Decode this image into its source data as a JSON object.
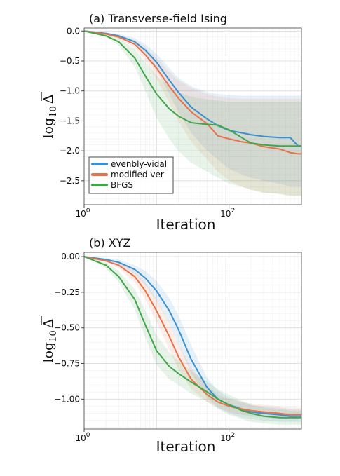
{
  "chart_data": [
    {
      "type": "line",
      "title": "(a) Transverse-field Ising",
      "xlabel": "Iteration",
      "ylabel": "log10 Δ",
      "xscale": "log",
      "xlim": [
        1,
        1000
      ],
      "ylim": [
        -2.9,
        0.05
      ],
      "xticks": [
        {
          "value": 1,
          "base": "10",
          "exp": "0"
        },
        {
          "value": 100,
          "base": "10",
          "exp": "2"
        }
      ],
      "yticks": [
        {
          "value": 0,
          "label": "0.0"
        },
        {
          "value": -0.5,
          "label": "−0.5"
        },
        {
          "value": -1.0,
          "label": "−1.0"
        },
        {
          "value": -1.5,
          "label": "−1.5"
        },
        {
          "value": -2.0,
          "label": "−2.0"
        },
        {
          "value": -2.5,
          "label": "−2.5"
        }
      ],
      "grid": true,
      "legend": "lower-left",
      "series": [
        {
          "name": "evenbly-vidal",
          "color": "#3a8fd0",
          "x": [
            1,
            2,
            3,
            5,
            7,
            10,
            15,
            20,
            30,
            50,
            70,
            100,
            150,
            200,
            300,
            500,
            700,
            900,
            1000
          ],
          "y": [
            0,
            -0.04,
            -0.08,
            -0.18,
            -0.32,
            -0.52,
            -0.82,
            -1.02,
            -1.27,
            -1.47,
            -1.58,
            -1.66,
            -1.7,
            -1.73,
            -1.76,
            -1.78,
            -1.78,
            -1.92,
            -1.92
          ],
          "band_low": [
            0,
            -0.05,
            -0.1,
            -0.22,
            -0.4,
            -0.65,
            -1.05,
            -1.35,
            -1.7,
            -2.0,
            -2.15,
            -2.3,
            -2.4,
            -2.45,
            -2.5,
            -2.55,
            -2.6,
            -2.6,
            -2.6
          ],
          "band_high": [
            0,
            -0.02,
            -0.05,
            -0.12,
            -0.22,
            -0.38,
            -0.62,
            -0.78,
            -0.92,
            -1.02,
            -1.05,
            -1.07,
            -1.08,
            -1.08,
            -1.08,
            -1.08,
            -1.08,
            -1.08,
            -1.08
          ]
        },
        {
          "name": "modified ver",
          "color": "#e8714a",
          "x": [
            1,
            2,
            3,
            5,
            7,
            10,
            15,
            20,
            30,
            50,
            70,
            100,
            150,
            200,
            300,
            500,
            700,
            900,
            1000
          ],
          "y": [
            0,
            -0.05,
            -0.1,
            -0.22,
            -0.4,
            -0.62,
            -0.92,
            -1.12,
            -1.35,
            -1.55,
            -1.75,
            -1.8,
            -1.85,
            -1.87,
            -1.93,
            -1.97,
            -2.03,
            -2.05,
            -2.05
          ],
          "band_low": [
            0,
            -0.06,
            -0.13,
            -0.28,
            -0.5,
            -0.8,
            -1.2,
            -1.5,
            -1.85,
            -2.15,
            -2.35,
            -2.5,
            -2.6,
            -2.65,
            -2.7,
            -2.72,
            -2.75,
            -2.75,
            -2.75
          ],
          "band_high": [
            0,
            -0.03,
            -0.07,
            -0.15,
            -0.28,
            -0.45,
            -0.68,
            -0.82,
            -0.95,
            -1.05,
            -1.1,
            -1.12,
            -1.13,
            -1.13,
            -1.13,
            -1.13,
            -1.13,
            -1.13,
            -1.13
          ]
        },
        {
          "name": "BFGS",
          "color": "#3fa64a",
          "x": [
            1,
            2,
            3,
            5,
            7,
            10,
            15,
            20,
            30,
            50,
            70,
            100,
            150,
            200,
            300,
            500,
            700,
            900,
            1000
          ],
          "y": [
            0,
            -0.08,
            -0.18,
            -0.45,
            -0.75,
            -1.05,
            -1.3,
            -1.42,
            -1.53,
            -1.56,
            -1.57,
            -1.65,
            -1.78,
            -1.87,
            -1.9,
            -1.92,
            -1.92,
            -1.92,
            -1.92
          ],
          "band_low": [
            0,
            -0.1,
            -0.24,
            -0.6,
            -1.0,
            -1.45,
            -1.8,
            -2.0,
            -2.2,
            -2.35,
            -2.45,
            -2.55,
            -2.6,
            -2.65,
            -2.7,
            -2.72,
            -2.75,
            -2.75,
            -2.75
          ],
          "band_high": [
            0,
            -0.05,
            -0.12,
            -0.3,
            -0.52,
            -0.75,
            -0.92,
            -1.02,
            -1.1,
            -1.14,
            -1.16,
            -1.18,
            -1.18,
            -1.18,
            -1.18,
            -1.18,
            -1.18,
            -1.18,
            -1.18
          ]
        }
      ]
    },
    {
      "type": "line",
      "title": "(b) XYZ",
      "xlabel": "Iteration",
      "ylabel": "log10 Δ",
      "xscale": "log",
      "xlim": [
        1,
        1000
      ],
      "ylim": [
        -1.21,
        0.03
      ],
      "xticks": [
        {
          "value": 1,
          "base": "10",
          "exp": "0"
        },
        {
          "value": 100,
          "base": "10",
          "exp": "2"
        }
      ],
      "yticks": [
        {
          "value": 0,
          "label": "0.00"
        },
        {
          "value": -0.25,
          "label": "−0.25"
        },
        {
          "value": -0.5,
          "label": "−0.50"
        },
        {
          "value": -0.75,
          "label": "−0.75"
        },
        {
          "value": -1.0,
          "label": "−1.00"
        }
      ],
      "grid": true,
      "legend": "none",
      "series": [
        {
          "name": "evenbly-vidal",
          "color": "#3a8fd0",
          "x": [
            1,
            2,
            3,
            5,
            7,
            10,
            15,
            20,
            30,
            50,
            70,
            100,
            150,
            200,
            300,
            500,
            700,
            1000
          ],
          "y": [
            0,
            -0.02,
            -0.04,
            -0.09,
            -0.15,
            -0.24,
            -0.38,
            -0.51,
            -0.72,
            -0.92,
            -1.0,
            -1.04,
            -1.07,
            -1.09,
            -1.1,
            -1.11,
            -1.12,
            -1.12
          ],
          "band_low": [
            0,
            -0.03,
            -0.06,
            -0.12,
            -0.2,
            -0.31,
            -0.47,
            -0.61,
            -0.82,
            -0.99,
            -1.06,
            -1.1,
            -1.13,
            -1.14,
            -1.15,
            -1.16,
            -1.16,
            -1.16
          ],
          "band_high": [
            0,
            -0.01,
            -0.02,
            -0.06,
            -0.1,
            -0.17,
            -0.29,
            -0.41,
            -0.62,
            -0.85,
            -0.94,
            -0.99,
            -1.02,
            -1.04,
            -1.05,
            -1.06,
            -1.07,
            -1.07
          ]
        },
        {
          "name": "modified ver",
          "color": "#e8714a",
          "x": [
            1,
            2,
            3,
            5,
            7,
            10,
            15,
            20,
            30,
            50,
            70,
            100,
            150,
            200,
            300,
            500,
            700,
            1000
          ],
          "y": [
            0,
            -0.03,
            -0.06,
            -0.14,
            -0.24,
            -0.38,
            -0.56,
            -0.7,
            -0.86,
            -0.97,
            -1.02,
            -1.05,
            -1.07,
            -1.08,
            -1.09,
            -1.1,
            -1.11,
            -1.11
          ],
          "band_low": [
            0,
            -0.04,
            -0.08,
            -0.18,
            -0.3,
            -0.46,
            -0.65,
            -0.79,
            -0.93,
            -1.02,
            -1.06,
            -1.09,
            -1.11,
            -1.12,
            -1.13,
            -1.14,
            -1.14,
            -1.14
          ],
          "band_high": [
            0,
            -0.02,
            -0.04,
            -0.1,
            -0.18,
            -0.3,
            -0.47,
            -0.61,
            -0.78,
            -0.91,
            -0.97,
            -1.0,
            -1.02,
            -1.03,
            -1.04,
            -1.05,
            -1.06,
            -1.06
          ]
        },
        {
          "name": "BFGS",
          "color": "#3fa64a",
          "x": [
            1,
            2,
            3,
            5,
            7,
            10,
            15,
            20,
            30,
            50,
            70,
            100,
            150,
            200,
            300,
            500,
            700,
            1000
          ],
          "y": [
            0,
            -0.06,
            -0.14,
            -0.3,
            -0.48,
            -0.66,
            -0.77,
            -0.82,
            -0.88,
            -0.95,
            -1.0,
            -1.04,
            -1.08,
            -1.1,
            -1.12,
            -1.13,
            -1.13,
            -1.13
          ],
          "band_low": [
            0,
            -0.08,
            -0.18,
            -0.37,
            -0.57,
            -0.76,
            -0.86,
            -0.9,
            -0.96,
            -1.02,
            -1.07,
            -1.11,
            -1.14,
            -1.16,
            -1.17,
            -1.18,
            -1.18,
            -1.18
          ],
          "band_high": [
            0,
            -0.04,
            -0.1,
            -0.23,
            -0.38,
            -0.55,
            -0.67,
            -0.73,
            -0.8,
            -0.88,
            -0.93,
            -0.97,
            -1.01,
            -1.04,
            -1.06,
            -1.07,
            -1.08,
            -1.08
          ]
        }
      ]
    }
  ]
}
